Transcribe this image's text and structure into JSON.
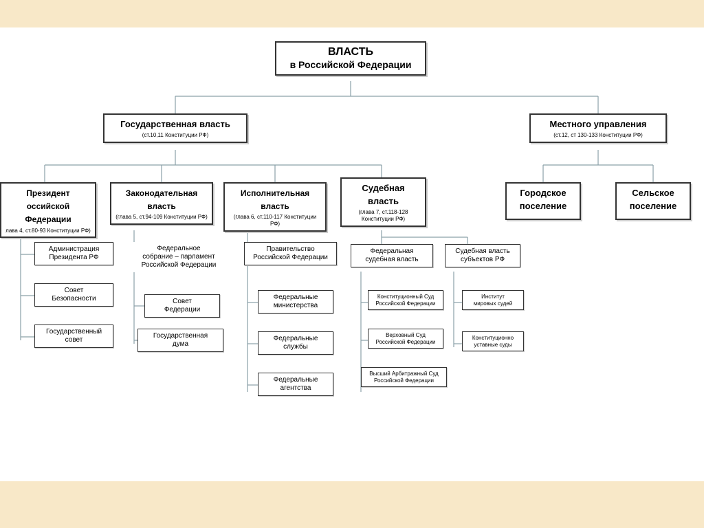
{
  "diagram": {
    "type": "tree",
    "background_color": "#f8e8c8",
    "frame_color": "#ffffff",
    "node_border": "#333333",
    "edge_color": "#8aa0a8",
    "shadow_color": "#cccccc",
    "root": {
      "title": "ВЛАСТЬ",
      "subtitle": "в Российской Федерации",
      "title_fontsize": 16,
      "sub_fontsize": 14
    },
    "level2": {
      "gov": {
        "title": "Государственная власть",
        "sub": "(ст.10,11 Конституции РФ)",
        "fontsize": 13
      },
      "local": {
        "title": "Местного управления",
        "sub": "(ст.12, ст 130-133 Конституции РФ)",
        "fontsize": 13
      }
    },
    "level3": {
      "president": {
        "title": "Президент",
        "title2": "оссийской Федерации",
        "sub": "лава 4, ст.80-93 Конституции РФ)",
        "fontsize": 12
      },
      "legislative": {
        "title": "Законодательная",
        "title2": "власть",
        "sub": "(глава 5, ст.94-109 Конституции РФ)",
        "fontsize": 12
      },
      "executive": {
        "title": "Исполнительная",
        "title2": "власть",
        "sub": "(глава 6, ст.110-117 Конституции РФ)",
        "fontsize": 12
      },
      "judicial": {
        "title": "Судебная",
        "title2": "власть",
        "sub": "(глава 7, ст.118-128 Конституции РФ)",
        "fontsize": 13
      },
      "city": {
        "title": "Городское",
        "title2": "поселение",
        "fontsize": 13
      },
      "rural": {
        "title": "Сельское",
        "title2": "поселение",
        "fontsize": 13
      }
    },
    "level4": {
      "pres_admin": "Администрация\nПрезидента РФ",
      "pres_security": "Совет\nБезопасности",
      "pres_state": "Государственный\nсовет",
      "leg_parliament": "Федеральное\nсобрание – парламент\nРоссийской Федерации",
      "leg_fed_council": "Совет\nФедерации",
      "leg_duma": "Государственная\nдума",
      "exec_govt": "Правительство\nРоссийской Федерации",
      "exec_min": "Федеральные\nминистерства",
      "exec_serv": "Федеральные\nслужбы",
      "exec_agency": "Федеральные\nагентства",
      "jud_fed": "Федеральная\nсудебная власть",
      "jud_const": "Конституционный Суд\nРоссийской Федерации",
      "jud_supreme": "Верховный Суд\nРоссийской Федерации",
      "jud_arb": "Высший Арбитражный Суд\nРоссийской Федерации",
      "jud_subj": "Судебная власть\nсубъектов РФ",
      "jud_inst": "Институт\nмировых судей",
      "jud_ust": "Конституционно\nуставные суды",
      "leaf_fontsize": 10,
      "small_fontsize": 8
    }
  }
}
